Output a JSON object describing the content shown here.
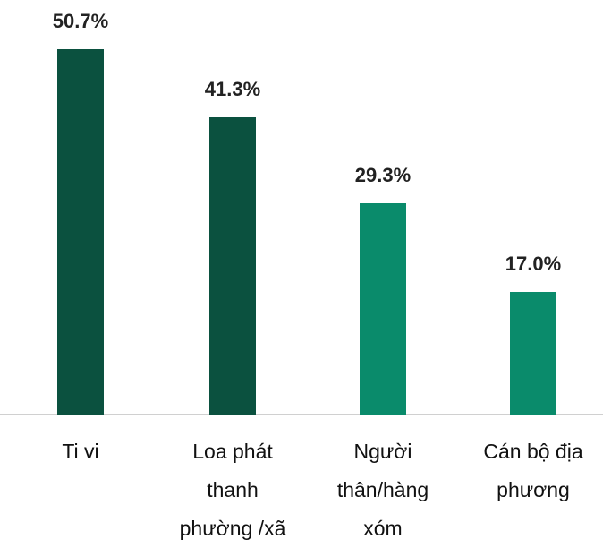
{
  "chart_data": {
    "type": "bar",
    "categories": [
      "Ti vi",
      "Loa phát thanh phường /xã",
      "Người thân/hàng xóm",
      "Cán bộ địa phương"
    ],
    "values": [
      50.7,
      41.3,
      29.3,
      17.0
    ],
    "value_labels": [
      "50.7%",
      "41.3%",
      "29.3%",
      "17.0%"
    ],
    "colors": [
      "#0b513f",
      "#0b513f",
      "#0a8b6b",
      "#0a8b6b"
    ]
  }
}
